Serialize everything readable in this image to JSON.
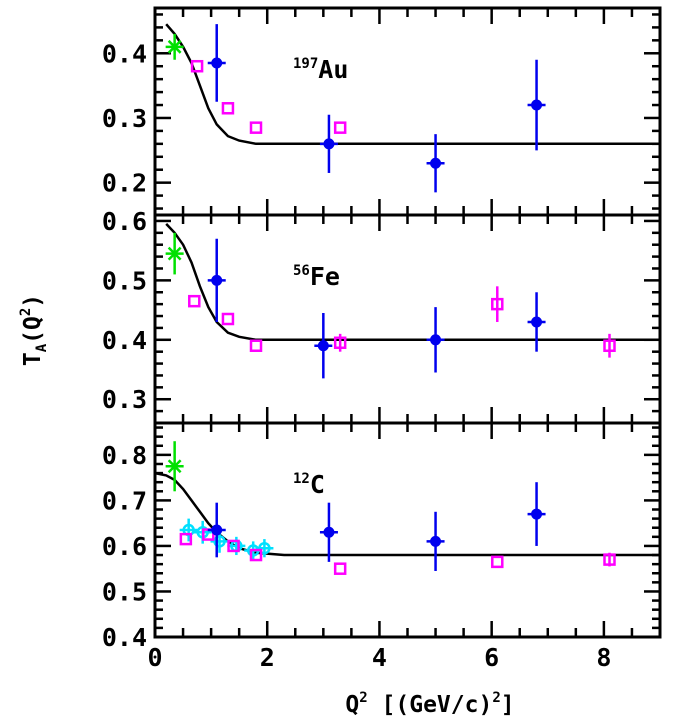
{
  "chart_data": {
    "type": "scatter",
    "xlabel_main": "Q",
    "xlabel_sup": "2",
    "xlabel_rest": " [(GeV/c)",
    "xlabel_sup2": "2",
    "xlabel_end": "]",
    "ylabel_main": "T",
    "ylabel_sub": "A",
    "ylabel_rest": "(Q",
    "ylabel_sup": "2",
    "ylabel_end": ")",
    "xlim": [
      0,
      9
    ],
    "x_ticks": [
      "0",
      "2",
      "4",
      "6",
      "8"
    ],
    "x_tick_values": [
      0,
      2,
      4,
      6,
      8
    ],
    "colors": {
      "green": "#00e000",
      "blue": "#0000ee",
      "magenta": "#ff00ff",
      "cyan": "#00e0ff",
      "curve": "#000000"
    },
    "panels": [
      {
        "label_sup": "197",
        "label_main": "Au",
        "ylim": [
          0.15,
          0.47
        ],
        "y_ticks": [
          "0.2",
          "0.3",
          "0.4"
        ],
        "y_tick_values": [
          0.2,
          0.3,
          0.4
        ],
        "curve": [
          [
            0.2,
            0.445
          ],
          [
            0.35,
            0.43
          ],
          [
            0.5,
            0.41
          ],
          [
            0.65,
            0.385
          ],
          [
            0.8,
            0.35
          ],
          [
            0.95,
            0.315
          ],
          [
            1.1,
            0.29
          ],
          [
            1.3,
            0.272
          ],
          [
            1.5,
            0.265
          ],
          [
            1.8,
            0.26
          ],
          [
            2.3,
            0.26
          ],
          [
            9.0,
            0.26
          ]
        ],
        "series": [
          {
            "color": "green",
            "marker": "star",
            "points": [
              [
                0.35,
                0.41,
                0.02
              ]
            ]
          },
          {
            "color": "blue",
            "marker": "circle",
            "points": [
              [
                1.1,
                0.385,
                0.06
              ],
              [
                3.1,
                0.26,
                0.045
              ],
              [
                5.0,
                0.23,
                0.045
              ],
              [
                6.8,
                0.32,
                0.07
              ]
            ]
          },
          {
            "color": "magenta",
            "marker": "square",
            "points": [
              [
                0.75,
                0.38,
                0
              ],
              [
                1.3,
                0.315,
                0
              ],
              [
                1.8,
                0.285,
                0
              ],
              [
                3.3,
                0.285,
                0
              ]
            ]
          }
        ]
      },
      {
        "label_sup": "56",
        "label_main": "Fe",
        "ylim": [
          0.26,
          0.61
        ],
        "y_ticks": [
          "0.3",
          "0.4",
          "0.5",
          "0.6"
        ],
        "y_tick_values": [
          0.3,
          0.4,
          0.5,
          0.6
        ],
        "curve": [
          [
            0.2,
            0.595
          ],
          [
            0.35,
            0.58
          ],
          [
            0.5,
            0.56
          ],
          [
            0.65,
            0.53
          ],
          [
            0.8,
            0.49
          ],
          [
            0.95,
            0.455
          ],
          [
            1.1,
            0.43
          ],
          [
            1.3,
            0.412
          ],
          [
            1.5,
            0.405
          ],
          [
            1.8,
            0.4
          ],
          [
            2.3,
            0.4
          ],
          [
            9.0,
            0.4
          ]
        ],
        "series": [
          {
            "color": "green",
            "marker": "star",
            "points": [
              [
                0.35,
                0.545,
                0.035
              ]
            ]
          },
          {
            "color": "blue",
            "marker": "circle",
            "points": [
              [
                1.1,
                0.5,
                0.07
              ],
              [
                3.0,
                0.39,
                0.055
              ],
              [
                5.0,
                0.4,
                0.055
              ],
              [
                6.8,
                0.43,
                0.05
              ]
            ]
          },
          {
            "color": "magenta",
            "marker": "square",
            "points": [
              [
                0.7,
                0.465,
                0
              ],
              [
                1.3,
                0.435,
                0
              ],
              [
                1.8,
                0.39,
                0
              ],
              [
                3.3,
                0.395,
                0.015
              ],
              [
                6.1,
                0.46,
                0.03
              ],
              [
                8.1,
                0.39,
                0.02
              ]
            ]
          }
        ]
      },
      {
        "label_sup": "12",
        "label_main": "C",
        "ylim": [
          0.4,
          0.87
        ],
        "y_ticks": [
          "0.4",
          "0.5",
          "0.6",
          "0.7",
          "0.8"
        ],
        "y_tick_values": [
          0.4,
          0.5,
          0.6,
          0.7,
          0.8
        ],
        "curve": [
          [
            0.0,
            0.76
          ],
          [
            0.2,
            0.755
          ],
          [
            0.35,
            0.745
          ],
          [
            0.5,
            0.725
          ],
          [
            0.65,
            0.7
          ],
          [
            0.8,
            0.675
          ],
          [
            0.95,
            0.65
          ],
          [
            1.1,
            0.63
          ],
          [
            1.3,
            0.61
          ],
          [
            1.5,
            0.595
          ],
          [
            1.8,
            0.585
          ],
          [
            2.3,
            0.58
          ],
          [
            9.0,
            0.58
          ]
        ],
        "series": [
          {
            "color": "green",
            "marker": "star",
            "points": [
              [
                0.35,
                0.775,
                0.055
              ]
            ]
          },
          {
            "color": "cyan",
            "marker": "circle-open",
            "points": [
              [
                0.6,
                0.635,
                0.025
              ],
              [
                0.85,
                0.63,
                0.025
              ],
              [
                1.15,
                0.61,
                0.025
              ],
              [
                1.45,
                0.6,
                0.02
              ],
              [
                1.75,
                0.59,
                0.02
              ],
              [
                1.95,
                0.595,
                0.02
              ]
            ]
          },
          {
            "color": "magenta",
            "marker": "square",
            "points": [
              [
                0.55,
                0.615,
                0
              ],
              [
                0.95,
                0.625,
                0
              ],
              [
                1.4,
                0.6,
                0
              ],
              [
                1.8,
                0.58,
                0
              ],
              [
                3.3,
                0.55,
                0
              ],
              [
                6.1,
                0.565,
                0
              ],
              [
                8.1,
                0.57,
                0.015
              ]
            ]
          },
          {
            "color": "blue",
            "marker": "circle",
            "points": [
              [
                1.1,
                0.635,
                0.06
              ],
              [
                3.1,
                0.63,
                0.065
              ],
              [
                5.0,
                0.61,
                0.065
              ],
              [
                6.8,
                0.67,
                0.07
              ]
            ]
          }
        ]
      }
    ]
  }
}
